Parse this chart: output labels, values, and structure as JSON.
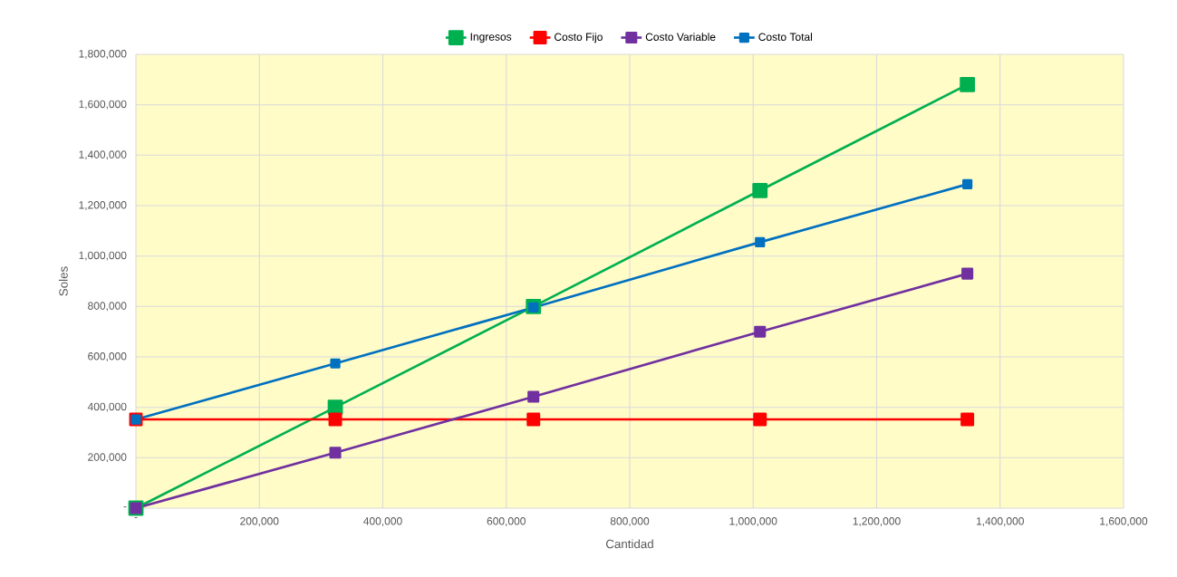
{
  "chart_data": {
    "type": "line",
    "xlabel": "Cantidad",
    "ylabel": "Soles",
    "x": [
      0,
      323000,
      644000,
      1011000,
      1347000
    ],
    "series": [
      {
        "name": "Ingresos",
        "color": "#00b050",
        "values": [
          0,
          400000,
          800000,
          1260000,
          1680000
        ]
      },
      {
        "name": "Costo Fijo",
        "color": "#ff0000",
        "values": [
          352000,
          352000,
          352000,
          352000,
          352000
        ]
      },
      {
        "name": "Costo Variable",
        "color": "#7030a0",
        "values": [
          0,
          220000,
          442000,
          700000,
          930000
        ]
      },
      {
        "name": "Costo Total",
        "color": "#0070c0",
        "values": [
          352000,
          574000,
          796000,
          1055000,
          1285000
        ]
      }
    ],
    "xlim": [
      0,
      1600000
    ],
    "ylim": [
      0,
      1800000
    ],
    "xticks": [
      {
        "value": 0,
        "label": "-"
      },
      {
        "value": 200000,
        "label": "200,000"
      },
      {
        "value": 400000,
        "label": "400,000"
      },
      {
        "value": 600000,
        "label": "600,000"
      },
      {
        "value": 800000,
        "label": "800,000"
      },
      {
        "value": 1000000,
        "label": "1,000,000"
      },
      {
        "value": 1200000,
        "label": "1,200,000"
      },
      {
        "value": 1400000,
        "label": "1,400,000"
      },
      {
        "value": 1600000,
        "label": "1,600,000"
      }
    ],
    "yticks": [
      {
        "value": 0,
        "label": "-"
      },
      {
        "value": 200000,
        "label": "200,000"
      },
      {
        "value": 400000,
        "label": "400,000"
      },
      {
        "value": 600000,
        "label": "600,000"
      },
      {
        "value": 800000,
        "label": "800,000"
      },
      {
        "value": 1000000,
        "label": "1,000,000"
      },
      {
        "value": 1200000,
        "label": "1,200,000"
      },
      {
        "value": 1400000,
        "label": "1,400,000"
      },
      {
        "value": 1600000,
        "label": "1,600,000"
      },
      {
        "value": 1800000,
        "label": "1,800,000"
      }
    ],
    "grid": true,
    "legend": "top",
    "marker": "square",
    "line_style": "solid"
  }
}
